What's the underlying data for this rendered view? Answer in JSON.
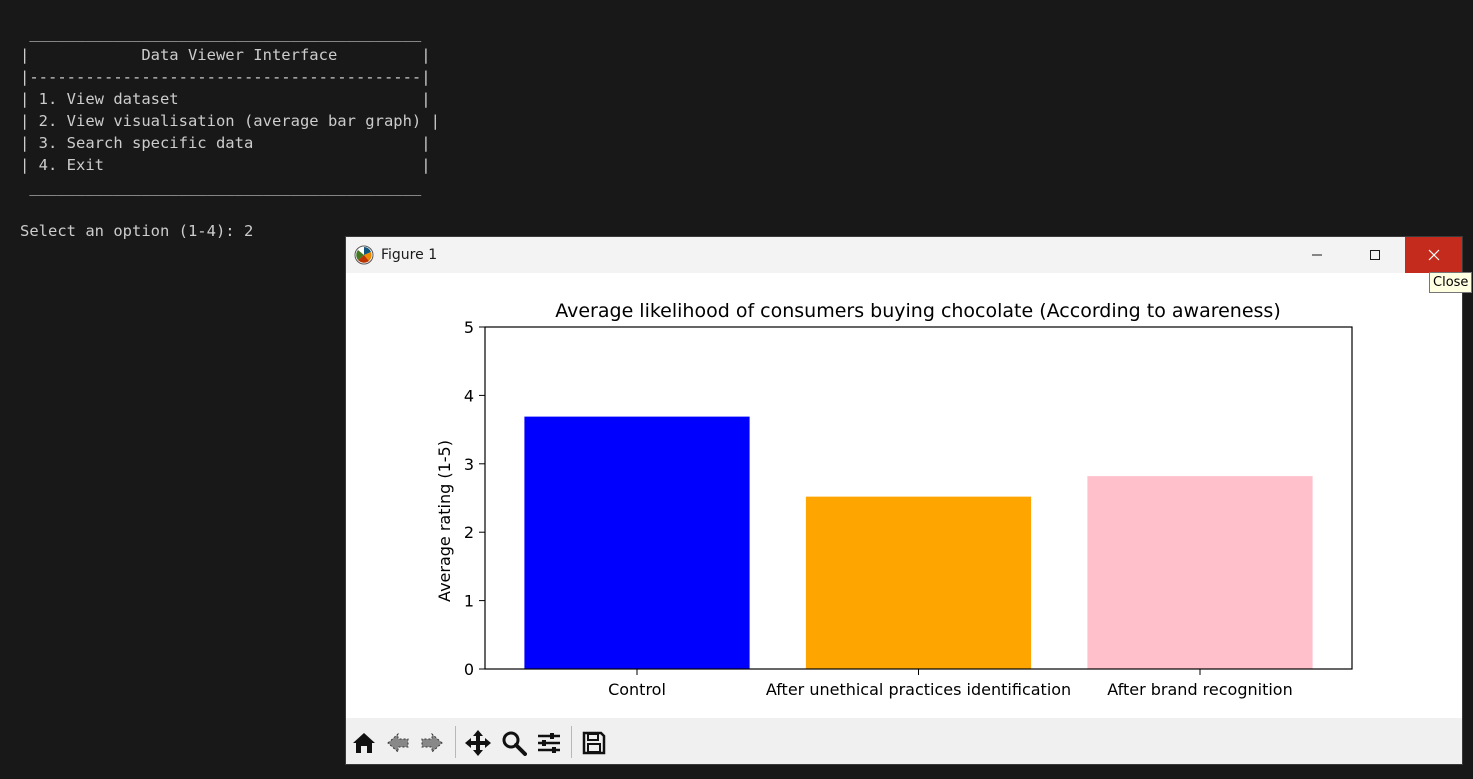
{
  "terminal": {
    "lines": [
      " __________________________________________",
      "|            Data Viewer Interface         |",
      "|------------------------------------------|",
      "| 1. View dataset                          |",
      "| 2. View visualisation (average bar graph) |",
      "| 3. Search specific data                  |",
      "| 4. Exit                                  |",
      " __________________________________________",
      "",
      "Select an option (1-4): 2"
    ]
  },
  "window": {
    "title": "Figure 1",
    "close_tooltip": "Close"
  },
  "toolbar": {
    "buttons": [
      "home-icon",
      "back-icon",
      "forward-icon",
      "pan-icon",
      "zoom-icon",
      "configure-icon",
      "save-icon"
    ]
  },
  "chart_data": {
    "type": "bar",
    "title": "Average likelihood of consumers buying chocolate (According to awareness)",
    "xlabel": "",
    "ylabel": "Average rating (1-5)",
    "categories": [
      "Control",
      "After unethical practices identification",
      "After brand recognition"
    ],
    "values": [
      3.69,
      2.52,
      2.82
    ],
    "colors": [
      "#0000ff",
      "#ffa500",
      "#ffc0cb"
    ],
    "ylim": [
      0,
      5
    ],
    "yticks": [
      "0",
      "1",
      "2",
      "3",
      "4",
      "5"
    ],
    "grid": false
  }
}
